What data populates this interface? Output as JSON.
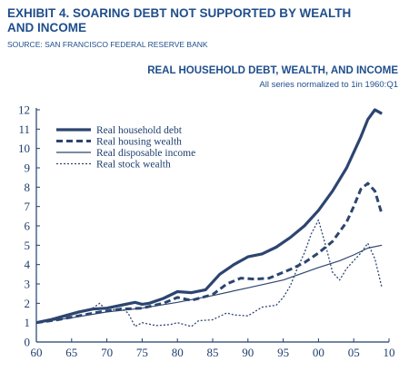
{
  "header": {
    "exhibit_title": "EXHIBIT 4. SOARING DEBT NOT SUPPORTED BY WEALTH AND INCOME",
    "source": "SOURCE: SAN FRANCISCO FEDERAL RESERVE BANK"
  },
  "colors": {
    "title": "#1f4e8c",
    "series": "#2c4570",
    "axis": "#1f3f6e"
  },
  "chart_data": {
    "type": "line",
    "title": "REAL HOUSEHOLD DEBT, WEALTH, AND INCOME",
    "subtitle": "All series normalized to 1in 1960:Q1",
    "xlabel": "",
    "ylabel": "",
    "xlim": [
      1960,
      2010
    ],
    "ylim": [
      0,
      12
    ],
    "x_ticks": [
      "60",
      "65",
      "70",
      "75",
      "80",
      "85",
      "90",
      "95",
      "00",
      "05",
      "10"
    ],
    "y_ticks": [
      "0",
      "1",
      "2",
      "3",
      "4",
      "5",
      "6",
      "7",
      "8",
      "9",
      "10",
      "11",
      "12"
    ],
    "grid": false,
    "legend_position": "top-left",
    "series": [
      {
        "name": "Real household debt",
        "style": "thick-solid",
        "x": [
          1960,
          1962,
          1964,
          1966,
          1968,
          1970,
          1972,
          1974,
          1975,
          1976,
          1978,
          1980,
          1982,
          1984,
          1986,
          1988,
          1990,
          1992,
          1994,
          1996,
          1998,
          2000,
          2002,
          2004,
          2006,
          2007,
          2008,
          2009
        ],
        "y": [
          1.0,
          1.15,
          1.35,
          1.55,
          1.7,
          1.75,
          1.9,
          2.05,
          1.95,
          2.0,
          2.25,
          2.6,
          2.55,
          2.7,
          3.5,
          4.0,
          4.4,
          4.55,
          4.9,
          5.4,
          6.0,
          6.8,
          7.8,
          9.0,
          10.6,
          11.5,
          12.0,
          11.8
        ]
      },
      {
        "name": "Real housing wealth",
        "style": "thick-dashed",
        "x": [
          1960,
          1963,
          1966,
          1969,
          1972,
          1975,
          1978,
          1980,
          1982,
          1985,
          1987,
          1989,
          1991,
          1993,
          1996,
          1998,
          2000,
          2002,
          2004,
          2005,
          2006,
          2007,
          2008,
          2009
        ],
        "y": [
          1.0,
          1.15,
          1.35,
          1.55,
          1.7,
          1.75,
          2.0,
          2.3,
          2.15,
          2.45,
          3.0,
          3.3,
          3.25,
          3.3,
          3.75,
          4.1,
          4.6,
          5.2,
          6.2,
          7.0,
          7.9,
          8.2,
          7.8,
          6.6
        ]
      },
      {
        "name": "Real disposable income",
        "style": "thin-solid",
        "x": [
          1960,
          1965,
          1970,
          1975,
          1980,
          1985,
          1990,
          1995,
          2000,
          2003,
          2005,
          2007,
          2009
        ],
        "y": [
          1.0,
          1.25,
          1.55,
          1.75,
          2.05,
          2.4,
          2.8,
          3.2,
          3.85,
          4.2,
          4.5,
          4.85,
          5.0
        ]
      },
      {
        "name": "Real stock wealth",
        "style": "thin-dotted",
        "x": [
          1960,
          1962,
          1964,
          1966,
          1968,
          1969,
          1970,
          1972,
          1973,
          1974,
          1975,
          1977,
          1979,
          1980,
          1982,
          1983,
          1985,
          1987,
          1988,
          1990,
          1992,
          1994,
          1995,
          1996,
          1997,
          1998,
          1999,
          2000,
          2001,
          2002,
          2003,
          2004,
          2005,
          2006,
          2007,
          2008,
          2009
        ],
        "y": [
          1.0,
          1.1,
          1.3,
          1.5,
          1.75,
          2.0,
          1.6,
          1.75,
          1.5,
          0.8,
          1.0,
          0.85,
          0.9,
          1.0,
          0.8,
          1.1,
          1.15,
          1.5,
          1.4,
          1.35,
          1.8,
          1.9,
          2.3,
          2.9,
          3.8,
          4.6,
          5.6,
          6.3,
          5.0,
          3.6,
          3.2,
          3.8,
          4.2,
          4.6,
          5.1,
          4.3,
          2.8
        ]
      }
    ]
  }
}
